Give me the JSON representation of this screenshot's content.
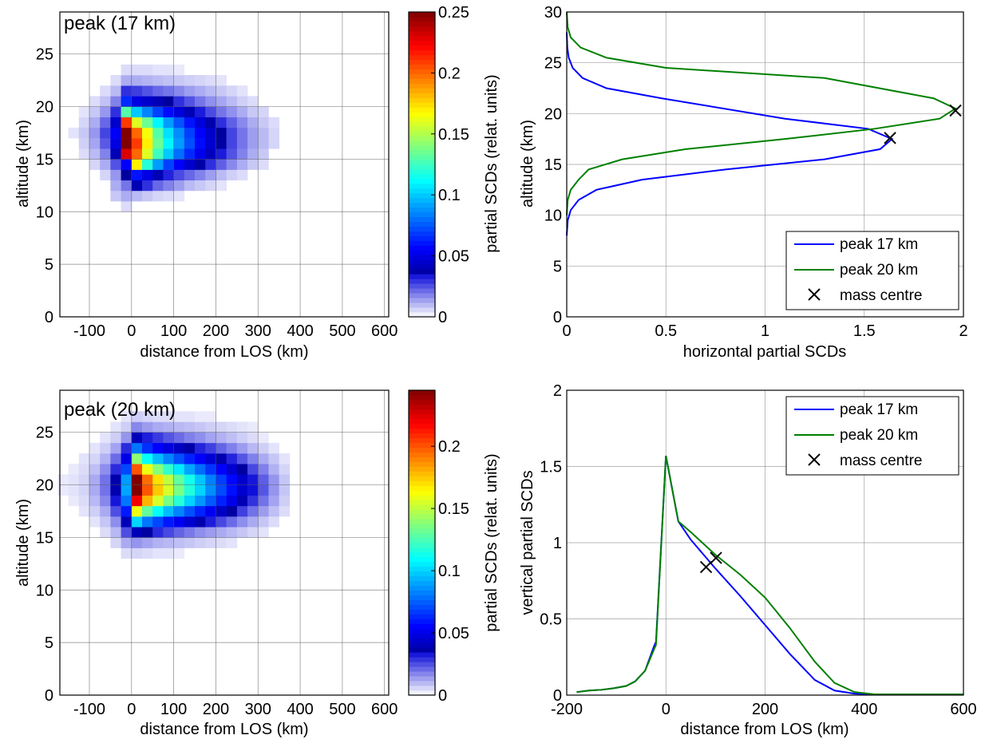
{
  "chart_data": [
    {
      "type": "heatmap",
      "title": "peak (17 km)",
      "xlabel": "distance from LOS (km)",
      "ylabel": "altitude (km)",
      "xlim": [
        -170,
        610
      ],
      "ylim": [
        0,
        29
      ],
      "xticks": [
        -100,
        0,
        100,
        200,
        300,
        400,
        500,
        600
      ],
      "yticks": [
        0,
        5,
        10,
        15,
        20,
        25
      ],
      "cell_dx": 25,
      "cell_dy": 1,
      "x_centers": [
        -137.5,
        -112.5,
        -87.5,
        -62.5,
        -37.5,
        -12.5,
        12.5,
        37.5,
        62.5,
        87.5,
        112.5,
        137.5,
        162.5,
        187.5,
        212.5,
        237.5,
        262.5,
        287.5,
        312.5,
        337.5,
        362.5
      ],
      "alt_centers": [
        10.5,
        11.5,
        12.5,
        13.5,
        14.5,
        15.5,
        16.5,
        17.5,
        18.5,
        19.5,
        20.5,
        21.5,
        22.5,
        23.5
      ],
      "values": [
        [
          0,
          0,
          0,
          0,
          0,
          0.005,
          0,
          0,
          0,
          0,
          0,
          0,
          0,
          0,
          0,
          0,
          0,
          0,
          0,
          0,
          0
        ],
        [
          0,
          0,
          0,
          0,
          0.008,
          0.012,
          0.01,
          0.008,
          0.006,
          0.005,
          0.004,
          0,
          0,
          0,
          0,
          0,
          0,
          0,
          0,
          0,
          0
        ],
        [
          0,
          0,
          0,
          0,
          0.012,
          0.02,
          0.04,
          0.03,
          0.022,
          0.018,
          0.014,
          0.01,
          0.008,
          0.006,
          0.004,
          0,
          0,
          0,
          0,
          0,
          0
        ],
        [
          0,
          0,
          0,
          0.006,
          0.015,
          0.035,
          0.06,
          0.05,
          0.04,
          0.032,
          0.026,
          0.022,
          0.018,
          0.014,
          0.01,
          0.007,
          0.005,
          0,
          0,
          0,
          0
        ],
        [
          0,
          0,
          0.006,
          0.012,
          0.025,
          0.055,
          0.17,
          0.12,
          0.09,
          0.07,
          0.055,
          0.045,
          0.037,
          0.03,
          0.023,
          0.017,
          0.012,
          0.008,
          0.005,
          0,
          0
        ],
        [
          0,
          0.005,
          0.01,
          0.018,
          0.04,
          0.23,
          0.2,
          0.16,
          0.125,
          0.1,
          0.08,
          0.065,
          0.052,
          0.042,
          0.033,
          0.025,
          0.018,
          0.012,
          0.008,
          0,
          0
        ],
        [
          0,
          0.007,
          0.013,
          0.024,
          0.05,
          0.26,
          0.21,
          0.17,
          0.135,
          0.11,
          0.09,
          0.073,
          0.058,
          0.046,
          0.036,
          0.027,
          0.02,
          0.014,
          0.01,
          0.006,
          0
        ],
        [
          0.004,
          0.008,
          0.015,
          0.027,
          0.055,
          0.25,
          0.2,
          0.165,
          0.13,
          0.105,
          0.087,
          0.07,
          0.056,
          0.045,
          0.035,
          0.027,
          0.02,
          0.014,
          0.01,
          0.006,
          0
        ],
        [
          0,
          0.006,
          0.012,
          0.022,
          0.045,
          0.21,
          0.16,
          0.135,
          0.11,
          0.09,
          0.074,
          0.06,
          0.048,
          0.038,
          0.03,
          0.023,
          0.017,
          0.012,
          0.008,
          0.005,
          0
        ],
        [
          0,
          0.004,
          0.008,
          0.015,
          0.03,
          0.13,
          0.1,
          0.085,
          0.07,
          0.058,
          0.048,
          0.04,
          0.033,
          0.026,
          0.02,
          0.016,
          0.012,
          0.008,
          0.006,
          0,
          0
        ],
        [
          0,
          0,
          0.005,
          0.009,
          0.018,
          0.065,
          0.05,
          0.045,
          0.04,
          0.035,
          0.03,
          0.025,
          0.02,
          0.016,
          0.013,
          0.01,
          0.007,
          0.005,
          0,
          0,
          0
        ],
        [
          0,
          0,
          0,
          0.005,
          0.01,
          0.03,
          0.028,
          0.025,
          0.022,
          0.02,
          0.017,
          0.014,
          0.012,
          0.01,
          0.008,
          0.006,
          0.004,
          0,
          0,
          0,
          0
        ],
        [
          0,
          0,
          0,
          0,
          0.005,
          0.012,
          0.012,
          0.011,
          0.01,
          0.009,
          0.008,
          0.007,
          0.006,
          0.005,
          0.004,
          0,
          0,
          0,
          0,
          0,
          0
        ],
        [
          0,
          0,
          0,
          0,
          0,
          0.005,
          0.005,
          0.005,
          0.004,
          0.004,
          0.003,
          0,
          0,
          0,
          0,
          0,
          0,
          0,
          0,
          0,
          0
        ]
      ],
      "colorbar": {
        "label": "partial SCDs (relat. units)",
        "range": [
          0,
          0.25
        ],
        "ticks": [
          0,
          0.05,
          0.1,
          0.15,
          0.2,
          0.25
        ]
      }
    },
    {
      "type": "line",
      "xlabel": "horizontal partial SCDs",
      "ylabel": "altitude (km)",
      "xlim": [
        0,
        2
      ],
      "ylim": [
        0,
        30
      ],
      "xticks": [
        0,
        0.5,
        1,
        1.5,
        2
      ],
      "yticks": [
        0,
        5,
        10,
        15,
        20,
        25,
        30
      ],
      "grid": true,
      "legend_position": "bottom-right",
      "series": [
        {
          "name": "peak 17 km",
          "color": "#0000ff",
          "x": [
            0,
            0.005,
            0.02,
            0.06,
            0.15,
            0.38,
            0.8,
            1.3,
            1.58,
            1.64,
            1.52,
            1.1,
            0.48,
            0.2,
            0.08,
            0.03,
            0.01,
            0.003,
            0
          ],
          "y": [
            8,
            9.5,
            10.5,
            11.5,
            12.5,
            13.5,
            14.5,
            15.5,
            16.5,
            17.5,
            18.5,
            19.5,
            21.5,
            22.5,
            23.5,
            24.5,
            25.5,
            26.5,
            28
          ]
        },
        {
          "name": "peak 20 km",
          "color": "#008000",
          "x": [
            0,
            0.005,
            0.02,
            0.06,
            0.11,
            0.28,
            0.6,
            1.1,
            1.55,
            1.88,
            1.96,
            1.85,
            1.3,
            0.5,
            0.2,
            0.07,
            0.02,
            0.005,
            0
          ],
          "y": [
            10,
            11.5,
            12.5,
            13.5,
            14.5,
            15.5,
            16.5,
            17.5,
            18.5,
            19.5,
            20.5,
            21.5,
            23.5,
            24.5,
            25.5,
            26.5,
            27.5,
            28.5,
            30
          ]
        },
        {
          "name": "mass centre",
          "color": "#000000",
          "marker": "x",
          "x": [
            1.63,
            1.96
          ],
          "y": [
            17.6,
            20.3
          ]
        }
      ]
    },
    {
      "type": "heatmap",
      "title": "peak (20 km)",
      "xlabel": "distance from LOS (km)",
      "ylabel": "altitude (km)",
      "xlim": [
        -170,
        610
      ],
      "ylim": [
        0,
        29
      ],
      "xticks": [
        -100,
        0,
        100,
        200,
        300,
        400,
        500,
        600
      ],
      "yticks": [
        0,
        5,
        10,
        15,
        20,
        25
      ],
      "cell_dx": 25,
      "cell_dy": 1,
      "x_centers": [
        -162.5,
        -137.5,
        -112.5,
        -87.5,
        -62.5,
        -37.5,
        -12.5,
        12.5,
        37.5,
        62.5,
        87.5,
        112.5,
        137.5,
        162.5,
        187.5,
        212.5,
        237.5,
        262.5,
        287.5,
        312.5,
        337.5,
        362.5
      ],
      "alt_centers": [
        13.5,
        14.5,
        15.5,
        16.5,
        17.5,
        18.5,
        19.5,
        20.5,
        21.5,
        22.5,
        23.5,
        24.5,
        25.5,
        26.5
      ],
      "values": [
        [
          0,
          0,
          0,
          0,
          0,
          0,
          0.005,
          0.006,
          0.005,
          0.004,
          0.004,
          0.003,
          0,
          0,
          0,
          0,
          0,
          0,
          0,
          0,
          0,
          0
        ],
        [
          0,
          0,
          0,
          0,
          0,
          0.006,
          0.012,
          0.015,
          0.013,
          0.011,
          0.01,
          0.009,
          0.008,
          0.007,
          0.006,
          0.005,
          0.004,
          0,
          0,
          0,
          0,
          0
        ],
        [
          0,
          0,
          0,
          0,
          0.005,
          0.01,
          0.025,
          0.04,
          0.035,
          0.03,
          0.026,
          0.022,
          0.019,
          0.016,
          0.014,
          0.012,
          0.01,
          0.008,
          0.006,
          0.004,
          0,
          0
        ],
        [
          0,
          0,
          0,
          0.004,
          0.008,
          0.016,
          0.04,
          0.1,
          0.08,
          0.07,
          0.06,
          0.052,
          0.045,
          0.038,
          0.032,
          0.026,
          0.021,
          0.016,
          0.012,
          0.008,
          0.005,
          0
        ],
        [
          0,
          0,
          0.004,
          0.007,
          0.012,
          0.025,
          0.06,
          0.16,
          0.13,
          0.11,
          0.095,
          0.083,
          0.072,
          0.062,
          0.052,
          0.043,
          0.035,
          0.027,
          0.02,
          0.014,
          0.009,
          0.005
        ],
        [
          0,
          0.003,
          0.005,
          0.01,
          0.017,
          0.033,
          0.08,
          0.22,
          0.18,
          0.155,
          0.135,
          0.118,
          0.1,
          0.087,
          0.074,
          0.062,
          0.05,
          0.039,
          0.029,
          0.02,
          0.013,
          0.007
        ],
        [
          0.003,
          0.004,
          0.006,
          0.012,
          0.02,
          0.038,
          0.09,
          0.25,
          0.2,
          0.175,
          0.155,
          0.135,
          0.117,
          0.1,
          0.085,
          0.071,
          0.058,
          0.045,
          0.034,
          0.024,
          0.015,
          0.008
        ],
        [
          0.003,
          0.004,
          0.006,
          0.012,
          0.02,
          0.037,
          0.088,
          0.245,
          0.195,
          0.17,
          0.15,
          0.13,
          0.113,
          0.097,
          0.082,
          0.068,
          0.056,
          0.044,
          0.033,
          0.023,
          0.015,
          0.008
        ],
        [
          0,
          0.003,
          0.005,
          0.009,
          0.016,
          0.03,
          0.07,
          0.2,
          0.16,
          0.138,
          0.12,
          0.105,
          0.09,
          0.078,
          0.066,
          0.055,
          0.045,
          0.035,
          0.026,
          0.018,
          0.011,
          0.006
        ],
        [
          0,
          0,
          0.004,
          0.006,
          0.011,
          0.021,
          0.05,
          0.14,
          0.11,
          0.095,
          0.083,
          0.072,
          0.062,
          0.054,
          0.046,
          0.038,
          0.031,
          0.024,
          0.018,
          0.012,
          0.008,
          0.004
        ],
        [
          0,
          0,
          0,
          0.004,
          0.007,
          0.013,
          0.03,
          0.08,
          0.065,
          0.055,
          0.048,
          0.042,
          0.036,
          0.031,
          0.027,
          0.022,
          0.018,
          0.014,
          0.01,
          0.007,
          0.004,
          0
        ],
        [
          0,
          0,
          0,
          0,
          0.004,
          0.007,
          0.015,
          0.04,
          0.032,
          0.028,
          0.024,
          0.021,
          0.018,
          0.016,
          0.013,
          0.011,
          0.009,
          0.007,
          0.005,
          0.003,
          0,
          0
        ],
        [
          0,
          0,
          0,
          0,
          0,
          0.004,
          0.007,
          0.017,
          0.014,
          0.012,
          0.011,
          0.01,
          0.009,
          0.008,
          0.007,
          0.006,
          0.005,
          0.004,
          0.003,
          0,
          0,
          0
        ],
        [
          0,
          0,
          0,
          0,
          0,
          0,
          0.004,
          0.007,
          0.006,
          0.005,
          0.005,
          0.004,
          0.004,
          0.003,
          0.003,
          0,
          0,
          0,
          0,
          0,
          0,
          0
        ]
      ],
      "colorbar": {
        "label": "partial SCDs (relat. units)",
        "range": [
          0,
          0.245
        ],
        "ticks": [
          0,
          0.05,
          0.1,
          0.15,
          0.2
        ]
      }
    },
    {
      "type": "line",
      "xlabel": "distance from LOS (km)",
      "ylabel": "vertical partial SCDs",
      "xlim": [
        -200,
        600
      ],
      "ylim": [
        0,
        2
      ],
      "xticks": [
        -200,
        0,
        200,
        400,
        600
      ],
      "yticks": [
        0,
        0.5,
        1,
        1.5,
        2
      ],
      "grid": true,
      "legend_position": "top-right",
      "series": [
        {
          "name": "peak 17 km",
          "color": "#0000ff",
          "x": [
            -180,
            -155,
            -130,
            -105,
            -80,
            -62,
            -42,
            -24,
            -20,
            0,
            25,
            50,
            100,
            150,
            200,
            250,
            300,
            340,
            380,
            420,
            600
          ],
          "y": [
            0.02,
            0.03,
            0.035,
            0.045,
            0.06,
            0.09,
            0.16,
            0.32,
            0.35,
            1.57,
            1.14,
            1.02,
            0.83,
            0.65,
            0.46,
            0.27,
            0.1,
            0.03,
            0.01,
            0.005,
            0.005
          ]
        },
        {
          "name": "peak 20 km",
          "color": "#008000",
          "x": [
            -180,
            -155,
            -130,
            -105,
            -80,
            -62,
            -42,
            -24,
            -20,
            0,
            25,
            50,
            100,
            150,
            200,
            250,
            300,
            340,
            380,
            420,
            600
          ],
          "y": [
            0.02,
            0.03,
            0.035,
            0.045,
            0.06,
            0.09,
            0.16,
            0.3,
            0.33,
            1.57,
            1.14,
            1.07,
            0.92,
            0.79,
            0.64,
            0.44,
            0.22,
            0.08,
            0.02,
            0.005,
            0.005
          ]
        },
        {
          "name": "mass centre",
          "color": "#000000",
          "marker": "x",
          "x": [
            81,
            101
          ],
          "y": [
            0.84,
            0.9
          ]
        }
      ]
    }
  ]
}
